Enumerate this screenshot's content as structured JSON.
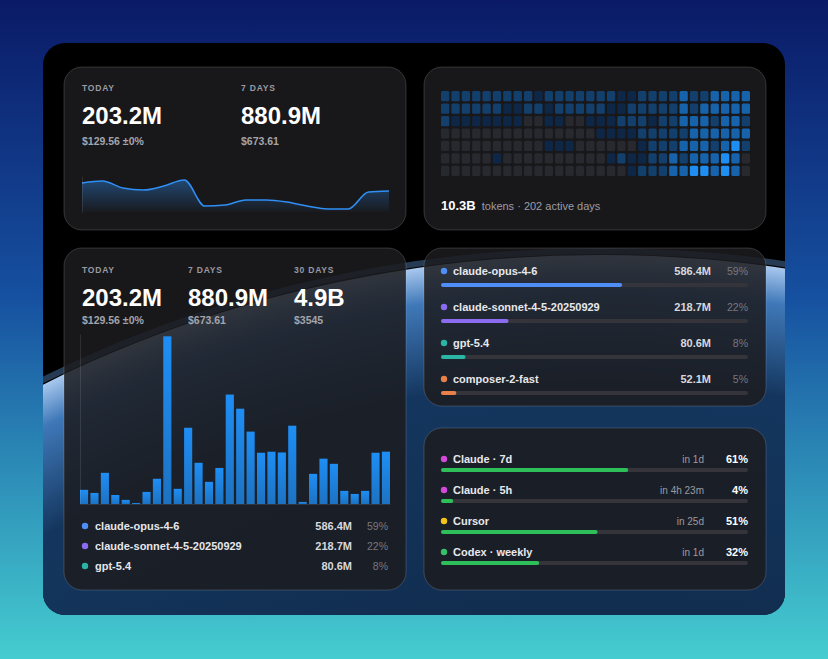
{
  "summary_cards": [
    {
      "stats": [
        {
          "label": "TODAY",
          "value": "203.2M",
          "cost": "$129.56 ±0%"
        },
        {
          "label": "7 DAYS",
          "value": "880.9M",
          "cost": "$673.61"
        }
      ]
    },
    {
      "stats": [
        {
          "label": "TODAY",
          "value": "203.2M",
          "cost": "$129.56 ±0%"
        },
        {
          "label": "7 DAYS",
          "value": "880.9M",
          "cost": "$673.61"
        },
        {
          "label": "30 DAYS",
          "value": "4.9B",
          "cost": "$3545"
        }
      ]
    }
  ],
  "chart_data": [
    {
      "type": "area",
      "categories": [
        null,
        null,
        null,
        null,
        null,
        null,
        null,
        null,
        null,
        null,
        null,
        null,
        null,
        null,
        null,
        null
      ],
      "values": [
        29,
        31,
        24,
        22,
        26,
        32,
        6,
        7,
        12,
        12,
        10,
        6,
        3,
        3,
        20,
        21
      ],
      "ylim": [
        0,
        36
      ],
      "color": "#2f8ff5",
      "tick_labels": false
    },
    {
      "type": "heatmap",
      "title": "10.3B",
      "subtitle": "tokens · 202 active days",
      "cells": [
        [
          2,
          2,
          2,
          2,
          2,
          2,
          2,
          2,
          2,
          1,
          2,
          2,
          2,
          2,
          2,
          2,
          2,
          1,
          1,
          2,
          2,
          2,
          2,
          3,
          2,
          2,
          3,
          3,
          3,
          3
        ],
        [
          2,
          2,
          2,
          2,
          2,
          2,
          1,
          1,
          2,
          2,
          1,
          2,
          2,
          2,
          2,
          2,
          1,
          1,
          2,
          2,
          2,
          2,
          2,
          3,
          2,
          3,
          3,
          3,
          3,
          3
        ],
        [
          2,
          1,
          1,
          1,
          1,
          1,
          1,
          1,
          0,
          0,
          1,
          1,
          0,
          0,
          1,
          1,
          1,
          2,
          2,
          2,
          1,
          2,
          2,
          3,
          3,
          3,
          2,
          3,
          3,
          2
        ],
        [
          0,
          0,
          0,
          0,
          0,
          0,
          0,
          0,
          0,
          0,
          0,
          0,
          0,
          0,
          0,
          1,
          1,
          1,
          1,
          2,
          2,
          2,
          2,
          2,
          3,
          3,
          3,
          3,
          3,
          3
        ],
        [
          0,
          0,
          0,
          0,
          0,
          0,
          0,
          0,
          0,
          0,
          1,
          1,
          1,
          0,
          0,
          0,
          0,
          0,
          0,
          1,
          2,
          2,
          2,
          3,
          3,
          3,
          2,
          3,
          4,
          2
        ],
        [
          0,
          0,
          0,
          0,
          0,
          1,
          0,
          0,
          0,
          0,
          0,
          0,
          0,
          0,
          0,
          0,
          1,
          2,
          1,
          1,
          2,
          2,
          3,
          2,
          3,
          3,
          3,
          4,
          3,
          0
        ],
        [
          0,
          0,
          0,
          0,
          0,
          0,
          0,
          0,
          0,
          0,
          0,
          0,
          0,
          0,
          0,
          0,
          0,
          0,
          1,
          2,
          2,
          2,
          3,
          3,
          4,
          4,
          3,
          4,
          3,
          0
        ]
      ],
      "tick_labels": false
    },
    {
      "type": "bar",
      "categories": [
        null,
        null,
        null,
        null,
        null,
        null,
        null,
        null,
        null,
        null,
        null,
        null,
        null,
        null,
        null,
        null,
        null,
        null,
        null,
        null,
        null,
        null,
        null,
        null,
        null,
        null,
        null,
        null,
        null,
        null
      ],
      "values": [
        55,
        43,
        121,
        35,
        16,
        4,
        47,
        98,
        651,
        59,
        296,
        160,
        86,
        140,
        425,
        370,
        281,
        199,
        203,
        200,
        304,
        8,
        117,
        176,
        156,
        51,
        39,
        51,
        199,
        203.2
      ],
      "ylim": [
        0,
        660
      ],
      "color": "#1e8ef5",
      "tick_labels": false
    },
    {
      "type": "bar",
      "orientation": "horizontal",
      "categories": [
        "claude-opus-4-6",
        "claude-sonnet-4-5-20250929",
        "gpt-5.4",
        "composer-2-fast"
      ],
      "values": [
        59,
        22,
        8,
        5
      ],
      "value_labels": [
        "59%",
        "22%",
        "8%",
        "5%"
      ],
      "tokens": [
        "586.4M",
        "218.7M",
        "80.6M",
        "52.1M"
      ],
      "colors": [
        "#4f8ef7",
        "#8b6cf0",
        "#2bb5a5",
        "#e8804a"
      ],
      "xlim": [
        0,
        100
      ],
      "data_labels": true,
      "tick_labels": false
    },
    {
      "type": "bar",
      "orientation": "horizontal",
      "categories": [
        "Claude · 7d",
        "Claude · 5h",
        "Cursor",
        "Codex · weekly"
      ],
      "values": [
        61,
        4,
        51,
        32
      ],
      "value_labels": [
        "61%",
        "4%",
        "51%",
        "32%"
      ],
      "resets": [
        "in 1d",
        "in 4h 23m",
        "in 25d",
        "in 1d"
      ],
      "color": "#2fbf5a",
      "xlim": [
        0,
        100
      ],
      "data_labels": true,
      "tick_labels": false
    }
  ]
}
